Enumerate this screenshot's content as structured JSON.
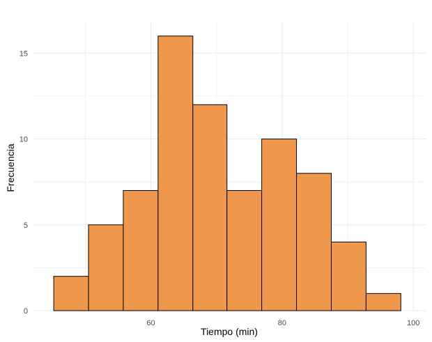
{
  "chart_data": {
    "type": "bar",
    "xlabel": "Tiempo (min)",
    "ylabel": "Frecuencia",
    "xlim": [
      42,
      102
    ],
    "ylim": [
      0,
      16.8
    ],
    "x_ticks": [
      60,
      80,
      100
    ],
    "x_minor_ticks": [
      50,
      70,
      90
    ],
    "y_ticks": [
      0,
      5,
      10,
      15
    ],
    "y_minor_ticks": [
      2.5,
      7.5,
      12.5
    ],
    "grid": true,
    "bins": [
      {
        "start": 45.2,
        "end": 50.5,
        "count": 2
      },
      {
        "start": 50.5,
        "end": 55.8,
        "count": 5
      },
      {
        "start": 55.8,
        "end": 61.1,
        "count": 7
      },
      {
        "start": 61.1,
        "end": 66.4,
        "count": 16
      },
      {
        "start": 66.4,
        "end": 71.6,
        "count": 12
      },
      {
        "start": 71.6,
        "end": 76.9,
        "count": 7
      },
      {
        "start": 76.9,
        "end": 82.2,
        "count": 10
      },
      {
        "start": 82.2,
        "end": 87.5,
        "count": 8
      },
      {
        "start": 87.5,
        "end": 92.8,
        "count": 4
      },
      {
        "start": 92.8,
        "end": 98.1,
        "count": 1
      }
    ],
    "colors": {
      "fill": "#EF974D",
      "stroke": "#000000",
      "grid": "#EBEBEB"
    }
  }
}
